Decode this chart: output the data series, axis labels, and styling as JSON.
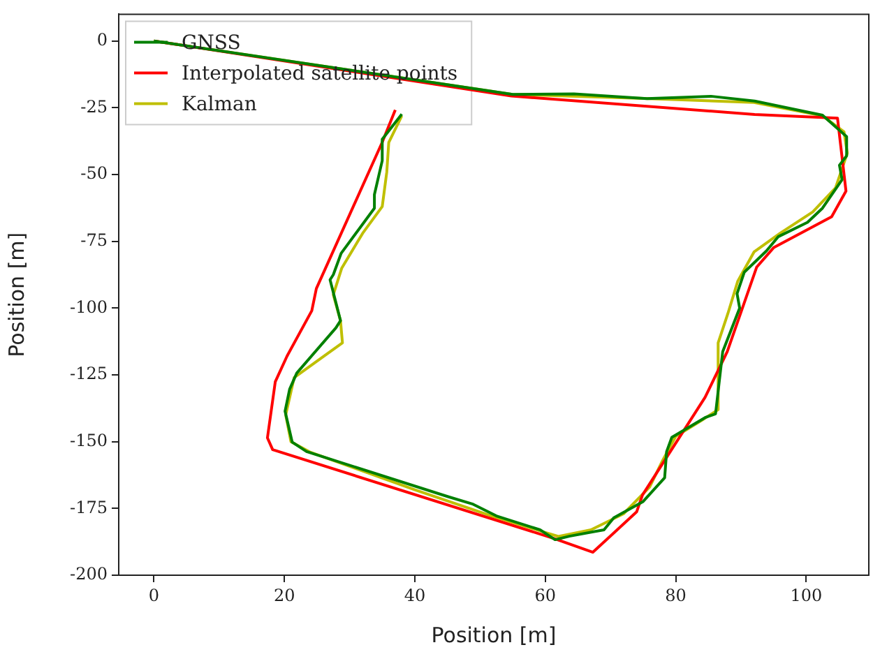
{
  "chart_data": {
    "type": "line",
    "xlabel": "Position [m]",
    "ylabel": "Position [m]",
    "xlim": [
      -5.4,
      109.6
    ],
    "ylim": [
      -200,
      10
    ],
    "xticks": [
      0,
      20,
      40,
      60,
      80,
      100
    ],
    "yticks": [
      -200,
      -175,
      -150,
      -125,
      -100,
      -75,
      -50,
      -25,
      0
    ],
    "grid": false,
    "legend": "top left",
    "series": [
      {
        "name": "GNSS",
        "color": "#008000",
        "x": [
          0,
          55,
          64.4,
          75.6,
          85.4,
          92.1,
          102.5,
          106.2,
          106.2,
          105.1,
          105.5,
          102.5,
          100.2,
          95.7,
          93.9,
          90.5,
          89.4,
          89.8,
          87.2,
          86.1,
          84.5,
          79.4,
          78.6,
          78.3,
          75,
          70.5,
          69,
          63.7,
          61.5,
          59.2,
          52.5,
          48.8,
          45.1,
          23.4,
          21.2,
          20.1,
          20.8,
          21.9,
          27.9,
          28.6,
          27,
          27.5,
          28.7,
          33.8,
          33.8,
          35,
          35,
          38
        ],
        "values": [
          0,
          -20,
          -19.8,
          -21.6,
          -20.7,
          -22.5,
          -27.8,
          -35.8,
          -43,
          -46.5,
          -51.9,
          -62.6,
          -67.9,
          -73.3,
          -78.6,
          -86.6,
          -94.6,
          -100,
          -116.3,
          -139.6,
          -141,
          -148.4,
          -153.7,
          -163.5,
          -172.4,
          -178.5,
          -183,
          -185.4,
          -186.7,
          -183,
          -177.8,
          -173.3,
          -170.6,
          -153.7,
          -150.2,
          -138.6,
          -130.4,
          -124.3,
          -107.4,
          -104.7,
          -89.4,
          -87.5,
          -79.5,
          -62.6,
          -57.5,
          -44.8,
          -36.8,
          -27.4
        ]
      },
      {
        "name": "Interpolated satellite points",
        "color": "#ff0000",
        "x": [
          0,
          54.8,
          92.1,
          104.8,
          106.1,
          103.9,
          95,
          92.4,
          87.9,
          84.5,
          74.9,
          74,
          67.3,
          61.4,
          18.2,
          17.4,
          18.6,
          20.4,
          24.2,
          24.9,
          35,
          37
        ],
        "values": [
          0,
          -20.6,
          -27.5,
          -28.9,
          -56.2,
          -65.8,
          -77.4,
          -84.7,
          -116.3,
          -133.4,
          -170,
          -176.3,
          -191.4,
          -186.3,
          -153,
          -148.6,
          -127.6,
          -118,
          -101,
          -92.7,
          -37.9,
          -25.8
        ]
      },
      {
        "name": "Kalman",
        "color": "#bfbf00",
        "x": [
          0,
          55,
          75,
          92,
          102.5,
          105.8,
          106.3,
          104.5,
          101,
          96,
          92,
          89.5,
          88,
          86.5,
          86.5,
          84,
          80,
          78,
          76,
          72,
          67,
          62,
          52,
          40,
          24,
          21,
          20.2,
          21.5,
          28.9,
          28.6,
          27.5,
          28.8,
          32,
          35,
          35.7,
          36,
          38
        ],
        "values": [
          0,
          -20,
          -21.5,
          -23,
          -28,
          -34,
          -42,
          -55,
          -64,
          -72,
          -79,
          -90,
          -102,
          -113,
          -138,
          -142,
          -148,
          -157,
          -167,
          -177,
          -183,
          -185.5,
          -178,
          -168,
          -154,
          -150,
          -140,
          -126,
          -113,
          -104.7,
          -95,
          -85,
          -72,
          -62,
          -49,
          -38,
          -28
        ]
      }
    ]
  }
}
